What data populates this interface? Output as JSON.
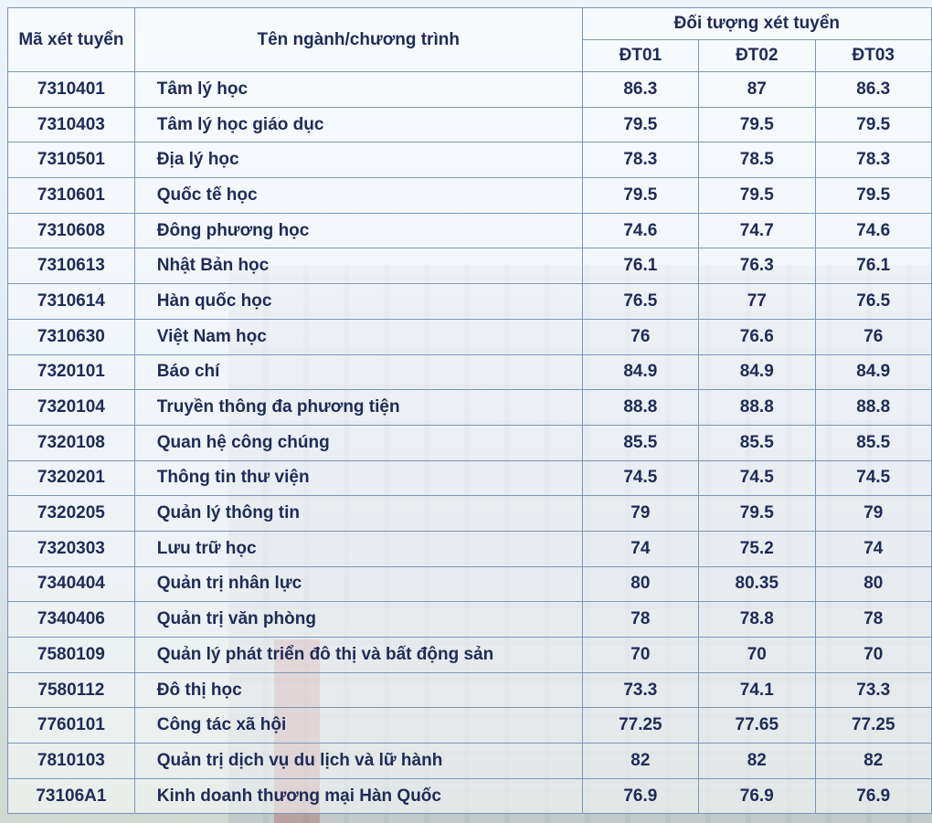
{
  "table": {
    "headers": {
      "code": "Mã xét tuyển",
      "name": "Tên ngành/chương trình",
      "group": "Đối tượng xét tuyển",
      "sub": [
        "ĐT01",
        "ĐT02",
        "ĐT03"
      ]
    },
    "rows": [
      {
        "code": "7310401",
        "name": "Tâm lý học",
        "vals": [
          "86.3",
          "87",
          "86.3"
        ]
      },
      {
        "code": "7310403",
        "name": "Tâm lý học giáo dục",
        "vals": [
          "79.5",
          "79.5",
          "79.5"
        ]
      },
      {
        "code": "7310501",
        "name": "Địa lý học",
        "vals": [
          "78.3",
          "78.5",
          "78.3"
        ]
      },
      {
        "code": "7310601",
        "name": "Quốc tế học",
        "vals": [
          "79.5",
          "79.5",
          "79.5"
        ]
      },
      {
        "code": "7310608",
        "name": "Đông phương học",
        "vals": [
          "74.6",
          "74.7",
          "74.6"
        ]
      },
      {
        "code": "7310613",
        "name": "Nhật Bản học",
        "vals": [
          "76.1",
          "76.3",
          "76.1"
        ]
      },
      {
        "code": "7310614",
        "name": "Hàn quốc học",
        "vals": [
          "76.5",
          "77",
          "76.5"
        ]
      },
      {
        "code": "7310630",
        "name": "Việt Nam học",
        "vals": [
          "76",
          "76.6",
          "76"
        ]
      },
      {
        "code": "7320101",
        "name": "Báo chí",
        "vals": [
          "84.9",
          "84.9",
          "84.9"
        ]
      },
      {
        "code": "7320104",
        "name": "Truyền thông đa phương tiện",
        "vals": [
          "88.8",
          "88.8",
          "88.8"
        ]
      },
      {
        "code": "7320108",
        "name": "Quan hệ công chúng",
        "vals": [
          "85.5",
          "85.5",
          "85.5"
        ]
      },
      {
        "code": "7320201",
        "name": "Thông tin thư viện",
        "vals": [
          "74.5",
          "74.5",
          "74.5"
        ]
      },
      {
        "code": "7320205",
        "name": "Quản lý thông tin",
        "vals": [
          "79",
          "79.5",
          "79"
        ]
      },
      {
        "code": "7320303",
        "name": "Lưu trữ học",
        "vals": [
          "74",
          "75.2",
          "74"
        ]
      },
      {
        "code": "7340404",
        "name": "Quản trị nhân lực",
        "vals": [
          "80",
          "80.35",
          "80"
        ]
      },
      {
        "code": "7340406",
        "name": "Quản trị văn phòng",
        "vals": [
          "78",
          "78.8",
          "78"
        ]
      },
      {
        "code": "7580109",
        "name": "Quản lý phát triển đô thị và bất động sản",
        "vals": [
          "70",
          "70",
          "70"
        ]
      },
      {
        "code": "7580112",
        "name": "Đô thị học",
        "vals": [
          "73.3",
          "74.1",
          "73.3"
        ]
      },
      {
        "code": "7760101",
        "name": "Công tác xã hội",
        "vals": [
          "77.25",
          "77.65",
          "77.25"
        ]
      },
      {
        "code": "7810103",
        "name": "Quản trị dịch vụ du lịch và lữ hành",
        "vals": [
          "82",
          "82",
          "82"
        ]
      },
      {
        "code": "73106A1",
        "name": "Kinh doanh thương mại Hàn Quốc",
        "vals": [
          "76.9",
          "76.9",
          "76.9"
        ]
      }
    ]
  }
}
